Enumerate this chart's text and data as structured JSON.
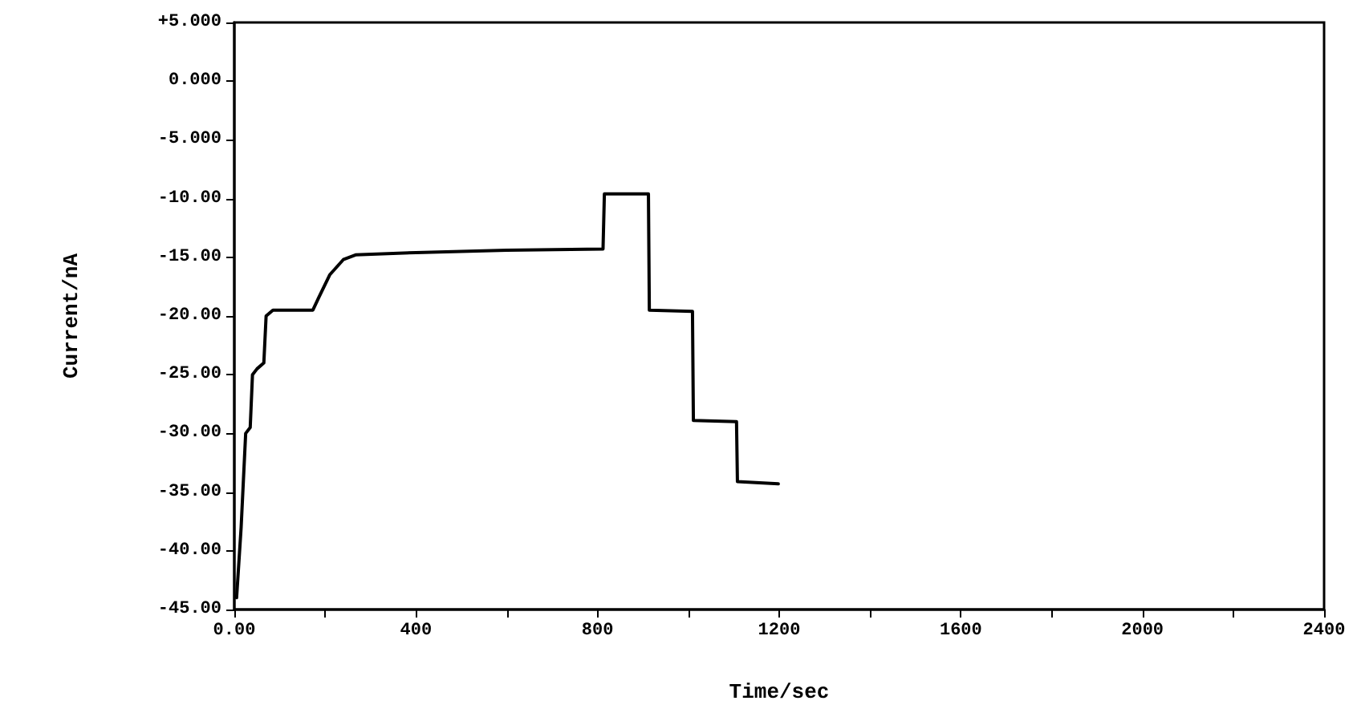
{
  "chart_data": {
    "type": "line",
    "xlabel": "Time/sec",
    "ylabel": "Current/nA",
    "x": [
      5,
      10,
      15,
      20,
      25,
      35,
      40,
      50,
      65,
      70,
      85,
      173,
      185,
      210,
      240,
      267,
      400,
      600,
      812,
      815,
      912,
      914,
      1009,
      1011,
      1106,
      1108,
      1198
    ],
    "series": [
      {
        "color": "#000000",
        "values": [
          -44,
          -41,
          -38,
          -34,
          -30,
          -29.5,
          -25,
          -24.5,
          -24,
          -20,
          -19.5,
          -19.5,
          -18.5,
          -16.5,
          -15.2,
          -14.8,
          -14.6,
          -14.4,
          -14.3,
          -9.6,
          -9.6,
          -19.5,
          -19.6,
          -28.9,
          -29.0,
          -34.1,
          -34.3
        ]
      }
    ],
    "xlim": [
      0,
      2400
    ],
    "ylim": [
      -45,
      5
    ],
    "xticks": [
      {
        "value": 0,
        "label": "0.00"
      },
      {
        "value": 200,
        "label": null
      },
      400,
      {
        "value": 600,
        "label": null
      },
      800,
      {
        "value": 1000,
        "label": null
      },
      1200,
      {
        "value": 1400,
        "label": null
      },
      1600,
      {
        "value": 1800,
        "label": null
      },
      2000,
      {
        "value": 2200,
        "label": null
      },
      2400
    ],
    "yticks": [
      {
        "value": -45,
        "label": "-45.00"
      },
      {
        "value": -40,
        "label": "-40.00"
      },
      {
        "value": -35,
        "label": "-35.00"
      },
      {
        "value": -30,
        "label": "-30.00"
      },
      {
        "value": -25,
        "label": "-25.00"
      },
      {
        "value": -20,
        "label": "-20.00"
      },
      {
        "value": -15,
        "label": "-15.00"
      },
      {
        "value": -10,
        "label": "-10.00"
      },
      {
        "value": -5,
        "label": "-5.000"
      },
      {
        "value": 0,
        "label": "0.000"
      },
      {
        "value": 5,
        "label": "+5.000"
      }
    ],
    "grid": false,
    "marker": "none",
    "line_style": "solid"
  }
}
